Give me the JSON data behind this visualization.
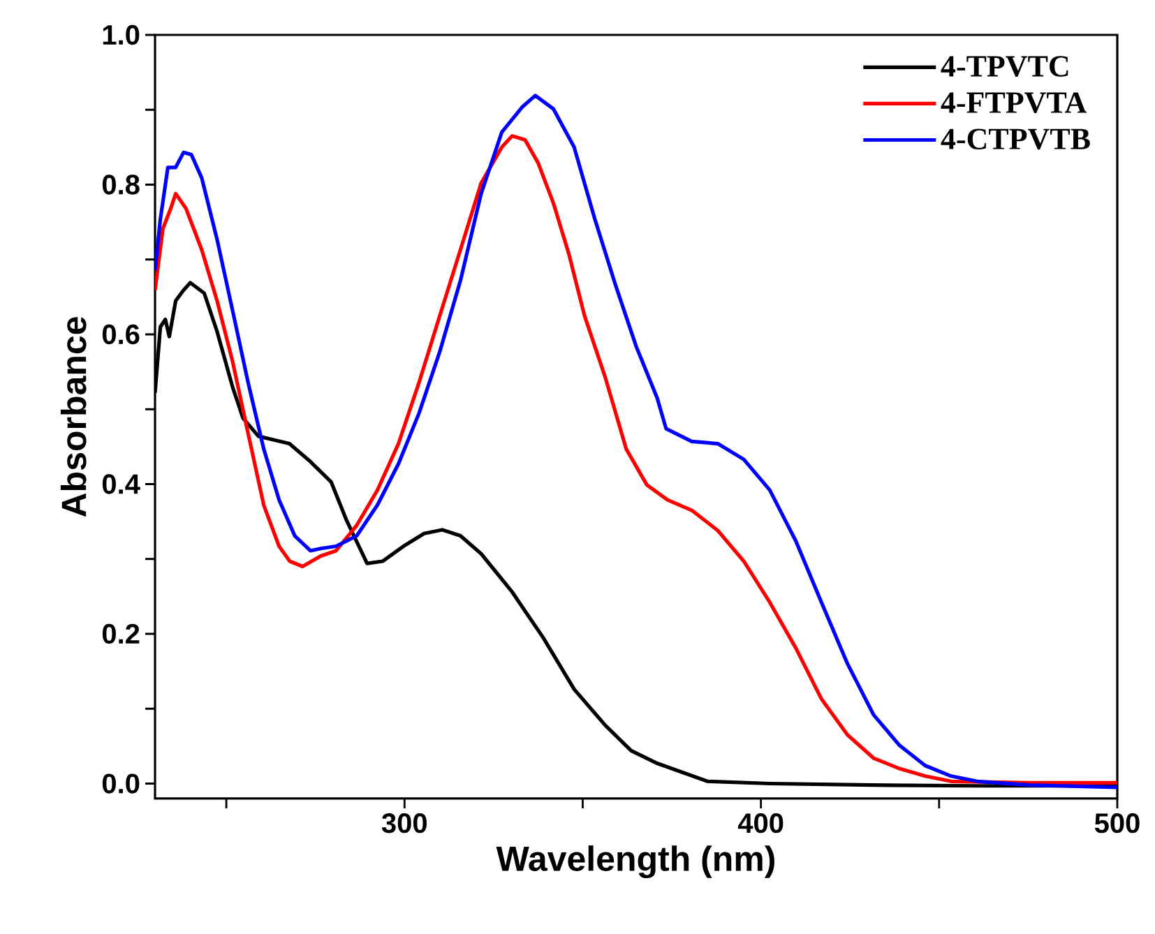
{
  "chart_data": {
    "type": "line",
    "xlabel": "Wavelength (nm)",
    "ylabel": "Absorbance",
    "xlim": [
      230,
      500
    ],
    "ylim": [
      -0.02,
      1.0
    ],
    "xticks": [
      {
        "value": 250,
        "label": null
      },
      300,
      {
        "value": 350,
        "label": null
      },
      400,
      {
        "value": 450,
        "label": null
      },
      500
    ],
    "yticks": [
      {
        "value": 0,
        "label": "0.0"
      },
      {
        "value": 0.1,
        "label": null
      },
      {
        "value": 0.2,
        "label": "0.2"
      },
      {
        "value": 0.3,
        "label": null
      },
      {
        "value": 0.4,
        "label": "0.4"
      },
      {
        "value": 0.5,
        "label": null
      },
      {
        "value": 0.6,
        "label": "0.6"
      },
      {
        "value": 0.7,
        "label": null
      },
      {
        "value": 0.8,
        "label": "0.8"
      },
      {
        "value": 0.9,
        "label": null
      },
      {
        "value": 1,
        "label": "1.0"
      }
    ],
    "legend": "top right",
    "grid": false,
    "marker": "none",
    "line_style": "solid",
    "series": [
      {
        "name": "4-TPVTC",
        "color": "#000000",
        "x": [
          230,
          231.5,
          232.9,
          234,
          235.8,
          238,
          239.9,
          243.8,
          247.4,
          251.8,
          254.7,
          259,
          263.4,
          267.7,
          273.6,
          279.4,
          283.7,
          289.5,
          293.9,
          299.7,
          305.5,
          310.6,
          315.7,
          321.5,
          330.2,
          338.9,
          347.6,
          356.3,
          363.6,
          370.9,
          385,
          402.5,
          431.6,
          460.7,
          500
        ],
        "values": [
          0.522,
          0.61,
          0.62,
          0.597,
          0.645,
          0.659,
          0.669,
          0.655,
          0.604,
          0.529,
          0.488,
          0.464,
          0.459,
          0.454,
          0.43,
          0.403,
          0.352,
          0.294,
          0.297,
          0.317,
          0.334,
          0.339,
          0.331,
          0.307,
          0.256,
          0.195,
          0.126,
          0.078,
          0.044,
          0.027,
          0.003,
          0.0,
          -0.002,
          -0.003,
          -0.003
        ]
      },
      {
        "name": "4-FTPVTA",
        "color": "#ff0000",
        "x": [
          230,
          232.2,
          234.4,
          235.8,
          238.7,
          243.1,
          247.4,
          251.8,
          256.1,
          260.5,
          264.8,
          267.8,
          271.4,
          276.5,
          280.8,
          286.6,
          292.4,
          298.3,
          304.1,
          309.9,
          315.7,
          321.5,
          327.3,
          330.2,
          333.8,
          337.5,
          341.8,
          346.2,
          350.5,
          356.3,
          362.2,
          368,
          373.8,
          380.6,
          387.9,
          395.2,
          402.5,
          409.8,
          417,
          424.3,
          431.6,
          438.9,
          446.1,
          453.4,
          475.3,
          500
        ],
        "values": [
          0.659,
          0.741,
          0.768,
          0.788,
          0.768,
          0.713,
          0.645,
          0.563,
          0.468,
          0.372,
          0.317,
          0.297,
          0.29,
          0.304,
          0.311,
          0.345,
          0.392,
          0.454,
          0.536,
          0.625,
          0.713,
          0.802,
          0.85,
          0.865,
          0.86,
          0.829,
          0.775,
          0.706,
          0.625,
          0.543,
          0.447,
          0.399,
          0.379,
          0.365,
          0.338,
          0.297,
          0.242,
          0.181,
          0.113,
          0.065,
          0.034,
          0.02,
          0.01,
          0.003,
          0.001,
          0.001
        ]
      },
      {
        "name": "4-CTPVTB",
        "color": "#0000ff",
        "x": [
          230,
          231.5,
          233.6,
          235.8,
          238,
          240.2,
          243.1,
          247.4,
          251.8,
          256.1,
          260.5,
          264.8,
          269.2,
          273.6,
          276.5,
          280.8,
          286.6,
          292.4,
          298.3,
          304.1,
          309.9,
          315.7,
          321.5,
          327.3,
          333.1,
          336.7,
          341.8,
          347.6,
          353.4,
          359.2,
          365,
          370.9,
          373.4,
          380.6,
          387.9,
          395.2,
          402.5,
          409.8,
          417,
          424.3,
          431.6,
          438.9,
          446.1,
          453.4,
          460.7,
          475.3,
          500
        ],
        "values": [
          0.686,
          0.754,
          0.823,
          0.823,
          0.843,
          0.84,
          0.809,
          0.727,
          0.631,
          0.536,
          0.447,
          0.379,
          0.331,
          0.311,
          0.314,
          0.317,
          0.331,
          0.372,
          0.427,
          0.495,
          0.577,
          0.672,
          0.788,
          0.87,
          0.904,
          0.919,
          0.901,
          0.85,
          0.754,
          0.666,
          0.584,
          0.515,
          0.474,
          0.457,
          0.454,
          0.433,
          0.392,
          0.324,
          0.242,
          0.16,
          0.092,
          0.051,
          0.024,
          0.01,
          0.003,
          -0.002,
          -0.005
        ]
      }
    ]
  }
}
